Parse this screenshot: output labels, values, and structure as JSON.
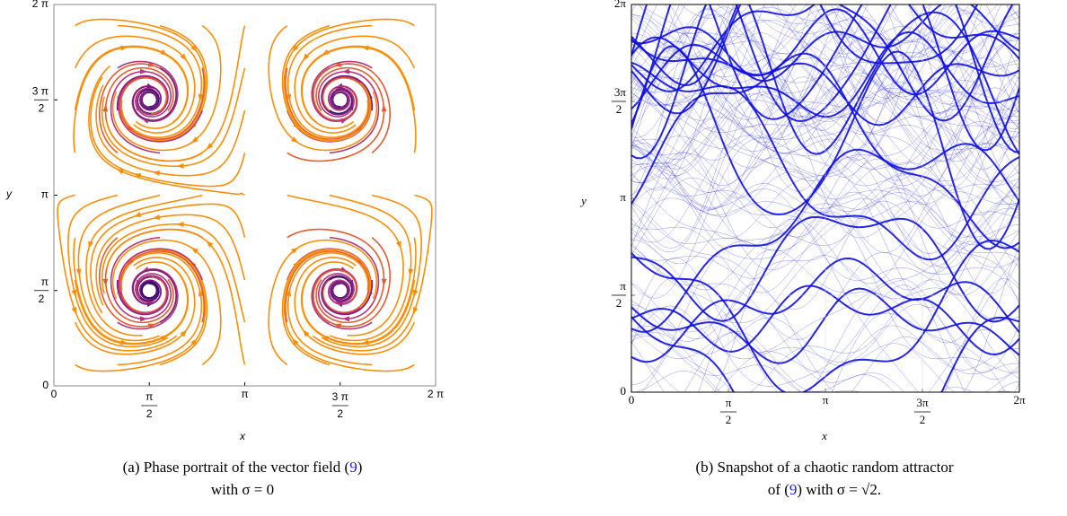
{
  "figures": [
    {
      "panel": "a",
      "x_label": "x",
      "y_label": "y",
      "xlim": [
        0,
        6.2832
      ],
      "ylim": [
        0,
        6.2832
      ],
      "xticks": [
        {
          "value": 0,
          "label": "0"
        },
        {
          "value": 1.5708,
          "numerator": "π",
          "denominator": "2"
        },
        {
          "value": 3.1416,
          "label": "π"
        },
        {
          "value": 4.7124,
          "numerator": "3 π",
          "denominator": "2"
        },
        {
          "value": 6.2832,
          "label": "2 π"
        }
      ],
      "yticks": [
        {
          "value": 0,
          "label": "0"
        },
        {
          "value": 1.5708,
          "numerator": "π",
          "denominator": "2"
        },
        {
          "value": 3.1416,
          "label": "π"
        },
        {
          "value": 4.7124,
          "numerator": "3 π",
          "denominator": "2"
        },
        {
          "value": 6.2832,
          "label": "2 π"
        }
      ],
      "caption": {
        "prefix": "(a) Phase portrait of the vector field (",
        "ref": "9",
        "suffix": ")",
        "line2": "with σ = 0"
      }
    },
    {
      "panel": "b",
      "x_label": "x",
      "y_label": "y",
      "xlim": [
        0,
        6.2832
      ],
      "ylim": [
        0,
        6.2832
      ],
      "xticks": [
        {
          "value": 0,
          "label": "0"
        },
        {
          "value": 1.5708,
          "numerator": "π",
          "denominator": "2"
        },
        {
          "value": 3.1416,
          "label": "π"
        },
        {
          "value": 4.7124,
          "numerator": "3π",
          "denominator": "2"
        },
        {
          "value": 6.2832,
          "label": "2π"
        }
      ],
      "yticks": [
        {
          "value": 0,
          "label": "0"
        },
        {
          "value": 1.5708,
          "numerator": "π",
          "denominator": "2"
        },
        {
          "value": 3.1416,
          "label": "π"
        },
        {
          "value": 4.7124,
          "numerator": "3π",
          "denominator": "2"
        },
        {
          "value": 6.2832,
          "label": "2π"
        }
      ],
      "caption": {
        "prefix": "(b) Snapshot of a chaotic random attractor",
        "line2_prefix": "of (",
        "ref": "9",
        "suffix": ") with σ = √2."
      }
    }
  ]
}
